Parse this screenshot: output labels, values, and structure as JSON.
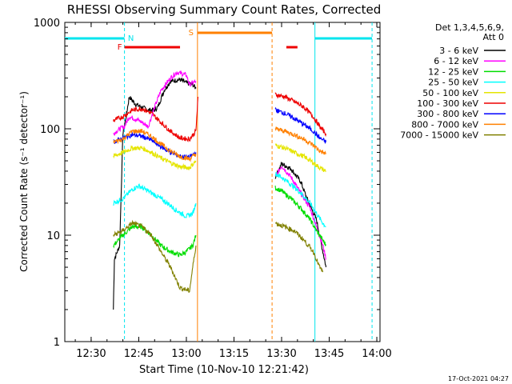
{
  "chart_data": {
    "type": "line",
    "title": "RHESSI Observing Summary Count Rates, Corrected",
    "xlabel": "Start Time (10-Nov-10 12:21:42)",
    "ylabel": "Corrected Count Rate (s⁻¹ detector⁻¹)",
    "yscale": "log",
    "ylim": [
      1,
      1000
    ],
    "xlim": [
      "12:21:42",
      "14:01:00"
    ],
    "x_ticks": [
      "12:30",
      "12:45",
      "13:00",
      "13:15",
      "13:30",
      "13:45",
      "14:00"
    ],
    "y_ticks": [
      "1",
      "10",
      "100",
      "1000"
    ],
    "legend_header": [
      "Det 1,3,4,5,6,9,",
      "Att 0"
    ],
    "legend_position": "right",
    "footer": "17-Oct-2021 04:27",
    "flags": [
      {
        "label": "N",
        "color": "#00e5ee",
        "segments": [
          [
            "12:21:42",
            "12:40:30"
          ],
          [
            "13:40:30",
            "13:58:30"
          ]
        ],
        "bounds": [
          "12:40:30",
          "13:40:30",
          "13:58:30"
        ]
      },
      {
        "label": "F",
        "color": "#ee0000",
        "segments": [
          [
            "12:40:30",
            "12:58:00"
          ],
          [
            "13:31:30",
            "13:35:00"
          ]
        ]
      },
      {
        "label": "S",
        "color": "#ff8000",
        "segments": [
          [
            "13:03:30",
            "13:27:00"
          ]
        ],
        "bounds": [
          "13:03:30",
          "13:27:00"
        ]
      }
    ],
    "series": [
      {
        "name": "3 - 6 keV",
        "color": "#000000",
        "gaps": [
          [
            "13:04:00",
            "13:27:30"
          ]
        ],
        "points": [
          [
            "12:37:00",
            2.0
          ],
          [
            "12:37:20",
            6.0
          ],
          [
            "12:39:00",
            8.0
          ],
          [
            "12:40:00",
            90
          ],
          [
            "12:41:00",
            130
          ],
          [
            "12:42:00",
            200
          ],
          [
            "12:44:00",
            170
          ],
          [
            "12:48:00",
            150
          ],
          [
            "12:50:00",
            150
          ],
          [
            "12:51:00",
            160
          ],
          [
            "12:53:00",
            230
          ],
          [
            "12:55:00",
            280
          ],
          [
            "12:58:00",
            290
          ],
          [
            "13:00:00",
            270
          ],
          [
            "13:02:00",
            260
          ],
          [
            "13:03:00",
            240
          ],
          [
            "13:28:00",
            35
          ],
          [
            "13:30:00",
            47
          ],
          [
            "13:33:00",
            42
          ],
          [
            "13:36:00",
            32
          ],
          [
            "13:38:00",
            22
          ],
          [
            "13:41:00",
            14
          ],
          [
            "13:43:00",
            7
          ],
          [
            "13:44:00",
            5
          ]
        ]
      },
      {
        "name": "6 - 12 keV",
        "color": "#ff00ff",
        "gaps": [
          [
            "13:04:00",
            "13:27:30"
          ]
        ],
        "points": [
          [
            "12:37:00",
            90
          ],
          [
            "12:39:00",
            100
          ],
          [
            "12:40:30",
            105
          ],
          [
            "12:42:00",
            130
          ],
          [
            "12:45:00",
            120
          ],
          [
            "12:48:00",
            105
          ],
          [
            "12:50:00",
            160
          ],
          [
            "12:52:00",
            230
          ],
          [
            "12:55:00",
            300
          ],
          [
            "12:57:00",
            340
          ],
          [
            "13:00:00",
            320
          ],
          [
            "13:01:00",
            260
          ],
          [
            "13:03:00",
            280
          ],
          [
            "13:28:00",
            35
          ],
          [
            "13:30:00",
            45
          ],
          [
            "13:33:00",
            35
          ],
          [
            "13:36:00",
            25
          ],
          [
            "13:39:00",
            18
          ],
          [
            "13:41:00",
            12
          ],
          [
            "13:43:00",
            8
          ],
          [
            "13:44:00",
            6
          ]
        ]
      },
      {
        "name": "12 - 25 keV",
        "color": "#00dd00",
        "gaps": [
          [
            "13:04:00",
            "13:27:30"
          ]
        ],
        "points": [
          [
            "12:37:00",
            8
          ],
          [
            "12:40:00",
            10
          ],
          [
            "12:43:00",
            12
          ],
          [
            "12:46:00",
            12
          ],
          [
            "12:49:00",
            10
          ],
          [
            "12:52:00",
            8
          ],
          [
            "12:55:00",
            7
          ],
          [
            "12:58:00",
            6.5
          ],
          [
            "13:00:00",
            7
          ],
          [
            "13:02:00",
            8
          ],
          [
            "13:03:00",
            10
          ],
          [
            "13:28:00",
            28
          ],
          [
            "13:30:00",
            26
          ],
          [
            "13:33:00",
            22
          ],
          [
            "13:36:00",
            18
          ],
          [
            "13:39:00",
            14
          ],
          [
            "13:41:00",
            11
          ],
          [
            "13:43:00",
            9
          ],
          [
            "13:44:00",
            8
          ]
        ]
      },
      {
        "name": "25 - 50 keV",
        "color": "#00ffff",
        "gaps": [
          [
            "13:04:00",
            "13:27:30"
          ]
        ],
        "points": [
          [
            "12:37:00",
            20
          ],
          [
            "12:40:00",
            22
          ],
          [
            "12:43:00",
            27
          ],
          [
            "12:45:00",
            29
          ],
          [
            "12:48:00",
            26
          ],
          [
            "12:51:00",
            23
          ],
          [
            "12:54:00",
            20
          ],
          [
            "12:57:00",
            17
          ],
          [
            "13:00:00",
            15
          ],
          [
            "13:02:00",
            16
          ],
          [
            "13:03:00",
            20
          ],
          [
            "13:28:00",
            38
          ],
          [
            "13:30:00",
            35
          ],
          [
            "13:33:00",
            30
          ],
          [
            "13:36:00",
            25
          ],
          [
            "13:39:00",
            20
          ],
          [
            "13:41:00",
            16
          ],
          [
            "13:43:00",
            13
          ],
          [
            "13:44:00",
            12
          ]
        ]
      },
      {
        "name": "50 - 100 keV",
        "color": "#e5e500",
        "gaps": [
          [
            "13:04:00",
            "13:27:30"
          ]
        ],
        "points": [
          [
            "12:37:00",
            55
          ],
          [
            "12:40:00",
            60
          ],
          [
            "12:43:00",
            66
          ],
          [
            "12:46:00",
            66
          ],
          [
            "12:49:00",
            60
          ],
          [
            "12:52:00",
            53
          ],
          [
            "12:55:00",
            48
          ],
          [
            "12:58:00",
            44
          ],
          [
            "13:01:00",
            43
          ],
          [
            "13:03:00",
            50
          ],
          [
            "13:28:00",
            70
          ],
          [
            "13:31:00",
            66
          ],
          [
            "13:34:00",
            60
          ],
          [
            "13:37:00",
            55
          ],
          [
            "13:40:00",
            48
          ],
          [
            "13:42:00",
            43
          ],
          [
            "13:44:00",
            40
          ]
        ]
      },
      {
        "name": "100 - 300 keV",
        "color": "#ee0000",
        "gaps": [
          [
            "13:04:00",
            "13:27:30"
          ]
        ],
        "points": [
          [
            "12:37:00",
            120
          ],
          [
            "12:40:00",
            130
          ],
          [
            "12:43:00",
            150
          ],
          [
            "12:46:00",
            155
          ],
          [
            "12:49:00",
            140
          ],
          [
            "12:52:00",
            115
          ],
          [
            "12:55:00",
            95
          ],
          [
            "12:58:00",
            82
          ],
          [
            "13:01:00",
            80
          ],
          [
            "13:03:00",
            95
          ],
          [
            "13:03:40",
            200
          ],
          [
            "13:28:00",
            210
          ],
          [
            "13:31:00",
            200
          ],
          [
            "13:34:00",
            180
          ],
          [
            "13:37:00",
            160
          ],
          [
            "13:40:00",
            130
          ],
          [
            "13:42:00",
            105
          ],
          [
            "13:44:00",
            90
          ]
        ]
      },
      {
        "name": "300 - 800 keV",
        "color": "#0000ff",
        "gaps": [
          [
            "13:04:00",
            "13:27:30"
          ]
        ],
        "points": [
          [
            "12:37:00",
            75
          ],
          [
            "12:40:00",
            82
          ],
          [
            "12:43:00",
            88
          ],
          [
            "12:46:00",
            85
          ],
          [
            "12:49:00",
            78
          ],
          [
            "12:52:00",
            68
          ],
          [
            "12:55:00",
            60
          ],
          [
            "12:58:00",
            55
          ],
          [
            "13:01:00",
            54
          ],
          [
            "13:03:00",
            60
          ],
          [
            "13:28:00",
            150
          ],
          [
            "13:31:00",
            140
          ],
          [
            "13:34:00",
            125
          ],
          [
            "13:37:00",
            110
          ],
          [
            "13:40:00",
            95
          ],
          [
            "13:42:00",
            82
          ],
          [
            "13:44:00",
            75
          ]
        ]
      },
      {
        "name": "800 - 7000 keV",
        "color": "#ff8000",
        "gaps": [
          [
            "13:04:00",
            "13:27:30"
          ]
        ],
        "points": [
          [
            "12:37:00",
            75
          ],
          [
            "12:40:00",
            80
          ],
          [
            "12:43:00",
            95
          ],
          [
            "12:46:00",
            95
          ],
          [
            "12:49:00",
            85
          ],
          [
            "12:52:00",
            72
          ],
          [
            "12:55:00",
            62
          ],
          [
            "12:58:00",
            55
          ],
          [
            "13:01:00",
            52
          ],
          [
            "13:03:00",
            58
          ],
          [
            "13:28:00",
            100
          ],
          [
            "13:31:00",
            95
          ],
          [
            "13:34:00",
            88
          ],
          [
            "13:37:00",
            80
          ],
          [
            "13:40:00",
            70
          ],
          [
            "13:42:00",
            62
          ],
          [
            "13:44:00",
            58
          ]
        ]
      },
      {
        "name": "7000 - 15000 keV",
        "color": "#808000",
        "gaps": [
          [
            "13:04:00",
            "13:27:30"
          ]
        ],
        "points": [
          [
            "12:37:00",
            10
          ],
          [
            "12:40:00",
            11
          ],
          [
            "12:43:00",
            13
          ],
          [
            "12:46:00",
            12
          ],
          [
            "12:49:00",
            10
          ],
          [
            "12:52:00",
            7
          ],
          [
            "12:55:00",
            5
          ],
          [
            "12:58:00",
            3.2
          ],
          [
            "13:01:00",
            3
          ],
          [
            "13:02:00",
            5
          ],
          [
            "13:03:00",
            8
          ],
          [
            "13:28:00",
            13
          ],
          [
            "13:31:00",
            12
          ],
          [
            "13:34:00",
            11
          ],
          [
            "13:37:00",
            9
          ],
          [
            "13:40:00",
            7
          ],
          [
            "13:42:00",
            5
          ],
          [
            "13:43:00",
            4.5
          ]
        ]
      }
    ]
  }
}
